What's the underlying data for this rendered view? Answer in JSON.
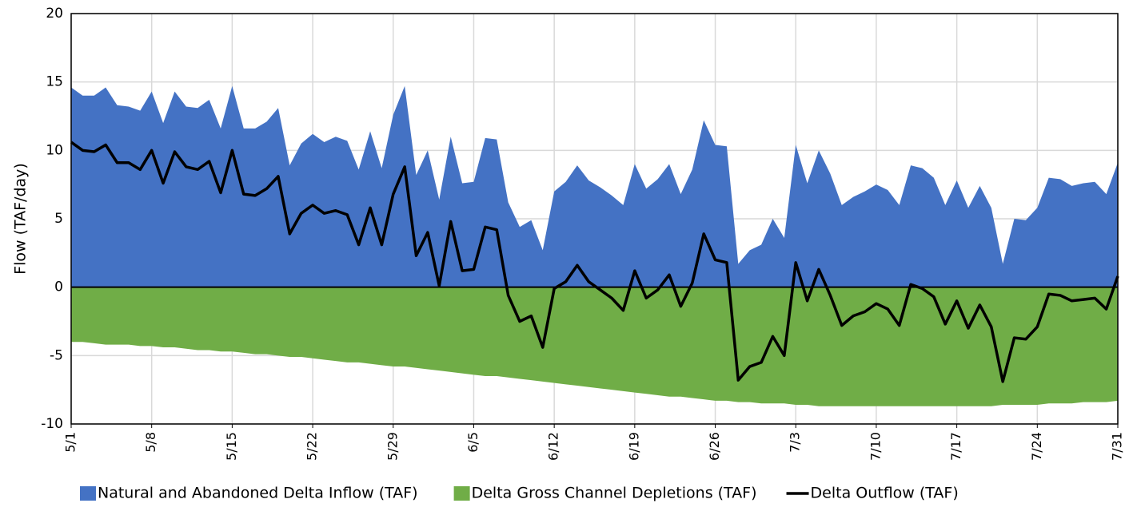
{
  "chart_data": {
    "type": "area",
    "ylabel": "Flow (TAF/day)",
    "categories": [
      "5/1",
      null,
      null,
      null,
      null,
      null,
      null,
      "5/8",
      null,
      null,
      null,
      null,
      null,
      null,
      "5/15",
      null,
      null,
      null,
      null,
      null,
      null,
      "5/22",
      null,
      null,
      null,
      null,
      null,
      null,
      "5/29",
      null,
      null,
      null,
      null,
      null,
      null,
      "6/5",
      null,
      null,
      null,
      null,
      null,
      null,
      "6/12",
      null,
      null,
      null,
      null,
      null,
      null,
      "6/19",
      null,
      null,
      null,
      null,
      null,
      null,
      "6/26",
      null,
      null,
      null,
      null,
      null,
      null,
      "7/3",
      null,
      null,
      null,
      null,
      null,
      null,
      "7/10",
      null,
      null,
      null,
      null,
      null,
      null,
      "7/17",
      null,
      null,
      null,
      null,
      null,
      null,
      "7/24",
      null,
      null,
      null,
      null,
      null,
      null,
      "7/31"
    ],
    "ylim": [
      -10,
      20
    ],
    "yticks": [
      -10,
      -5,
      0,
      5,
      10,
      15,
      20
    ],
    "grid": true,
    "series": [
      {
        "name": "Natural and Abandoned Delta Inflow (TAF)",
        "type": "area",
        "color": "#4472c4",
        "values": [
          14.6,
          14.0,
          14.0,
          14.6,
          13.3,
          13.2,
          12.9,
          14.3,
          12.0,
          14.3,
          13.2,
          13.1,
          13.7,
          11.6,
          14.7,
          11.6,
          11.6,
          12.1,
          13.1,
          8.9,
          10.5,
          11.2,
          10.6,
          11.0,
          10.7,
          8.6,
          11.4,
          8.7,
          12.6,
          14.7,
          8.2,
          10.0,
          6.4,
          11.0,
          7.6,
          7.7,
          10.9,
          10.8,
          6.2,
          4.4,
          4.9,
          2.7,
          7.0,
          7.7,
          8.9,
          7.8,
          7.3,
          6.7,
          6.0,
          9.0,
          7.2,
          7.9,
          9.0,
          6.8,
          8.6,
          12.2,
          10.4,
          10.3,
          1.7,
          2.7,
          3.1,
          5.0,
          3.6,
          10.4,
          7.6,
          10.0,
          8.3,
          6.0,
          6.6,
          7.0,
          7.5,
          7.1,
          6.0,
          8.9,
          8.7,
          8.0,
          6.0,
          7.8,
          5.8,
          7.4,
          5.8,
          1.7,
          5.0,
          4.9,
          5.8,
          8.0,
          7.9,
          7.4,
          7.6,
          7.7,
          6.8,
          9.1
        ]
      },
      {
        "name": "Delta Gross Channel Depletions (TAF)",
        "type": "area",
        "color": "#70ad47",
        "values": [
          -4.0,
          -4.0,
          -4.1,
          -4.2,
          -4.2,
          -4.2,
          -4.3,
          -4.3,
          -4.4,
          -4.4,
          -4.5,
          -4.6,
          -4.6,
          -4.7,
          -4.7,
          -4.8,
          -4.9,
          -4.9,
          -5.0,
          -5.1,
          -5.1,
          -5.2,
          -5.3,
          -5.4,
          -5.5,
          -5.5,
          -5.6,
          -5.7,
          -5.8,
          -5.8,
          -5.9,
          -6.0,
          -6.1,
          -6.2,
          -6.3,
          -6.4,
          -6.5,
          -6.5,
          -6.6,
          -6.7,
          -6.8,
          -6.9,
          -7.0,
          -7.1,
          -7.2,
          -7.3,
          -7.4,
          -7.5,
          -7.6,
          -7.7,
          -7.8,
          -7.9,
          -8.0,
          -8.0,
          -8.1,
          -8.2,
          -8.3,
          -8.3,
          -8.4,
          -8.4,
          -8.5,
          -8.5,
          -8.5,
          -8.6,
          -8.6,
          -8.7,
          -8.7,
          -8.7,
          -8.7,
          -8.7,
          -8.7,
          -8.7,
          -8.7,
          -8.7,
          -8.7,
          -8.7,
          -8.7,
          -8.7,
          -8.7,
          -8.7,
          -8.7,
          -8.6,
          -8.6,
          -8.6,
          -8.6,
          -8.5,
          -8.5,
          -8.5,
          -8.4,
          -8.4,
          -8.4,
          -8.3
        ]
      },
      {
        "name": "Delta Outflow (TAF)",
        "type": "line",
        "color": "#000000",
        "values": [
          10.6,
          10.0,
          9.9,
          10.4,
          9.1,
          9.1,
          8.6,
          10.0,
          7.6,
          9.9,
          8.8,
          8.6,
          9.2,
          6.9,
          10.0,
          6.8,
          6.7,
          7.2,
          8.1,
          3.9,
          5.4,
          6.0,
          5.4,
          5.6,
          5.3,
          3.1,
          5.8,
          3.1,
          6.8,
          8.8,
          2.3,
          4.0,
          0.1,
          4.8,
          1.2,
          1.3,
          4.4,
          4.2,
          -0.6,
          -2.5,
          -2.1,
          -4.4,
          -0.1,
          0.4,
          1.6,
          0.4,
          -0.2,
          -0.8,
          -1.7,
          1.2,
          -0.8,
          -0.2,
          0.9,
          -1.4,
          0.3,
          3.9,
          2.0,
          1.8,
          -6.8,
          -5.8,
          -5.5,
          -3.6,
          -5.0,
          1.8,
          -1.0,
          1.3,
          -0.6,
          -2.8,
          -2.1,
          -1.8,
          -1.2,
          -1.6,
          -2.8,
          0.2,
          -0.1,
          -0.7,
          -2.7,
          -1.0,
          -3.0,
          -1.3,
          -2.9,
          -6.9,
          -3.7,
          -3.8,
          -2.9,
          -0.5,
          -0.6,
          -1.0,
          -0.9,
          -0.8,
          -1.6,
          0.8
        ]
      }
    ]
  }
}
